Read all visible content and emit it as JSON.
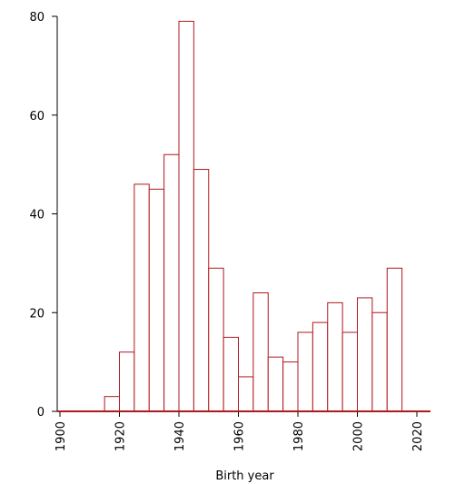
{
  "chart_data": {
    "type": "bar",
    "xlabel": "Birth year",
    "ylabel": "",
    "title": "",
    "xlim": [
      1900,
      2025
    ],
    "ylim": [
      0,
      80
    ],
    "xticks": [
      1900,
      1920,
      1940,
      1960,
      1980,
      2000,
      2020
    ],
    "yticks": [
      0,
      20,
      40,
      60,
      80
    ],
    "bin_width": 5,
    "bins": [
      {
        "start": 1915,
        "end": 1920,
        "count": 3
      },
      {
        "start": 1920,
        "end": 1925,
        "count": 12
      },
      {
        "start": 1925,
        "end": 1930,
        "count": 46
      },
      {
        "start": 1930,
        "end": 1935,
        "count": 45
      },
      {
        "start": 1935,
        "end": 1940,
        "count": 52
      },
      {
        "start": 1940,
        "end": 1945,
        "count": 79
      },
      {
        "start": 1945,
        "end": 1950,
        "count": 49
      },
      {
        "start": 1950,
        "end": 1955,
        "count": 29
      },
      {
        "start": 1955,
        "end": 1960,
        "count": 15
      },
      {
        "start": 1960,
        "end": 1965,
        "count": 7
      },
      {
        "start": 1965,
        "end": 1970,
        "count": 24
      },
      {
        "start": 1970,
        "end": 1975,
        "count": 11
      },
      {
        "start": 1975,
        "end": 1980,
        "count": 10
      },
      {
        "start": 1980,
        "end": 1985,
        "count": 16
      },
      {
        "start": 1985,
        "end": 1990,
        "count": 18
      },
      {
        "start": 1990,
        "end": 1995,
        "count": 22
      },
      {
        "start": 1995,
        "end": 2000,
        "count": 16
      },
      {
        "start": 2000,
        "end": 2005,
        "count": 23
      },
      {
        "start": 2005,
        "end": 2010,
        "count": 20
      },
      {
        "start": 2010,
        "end": 2015,
        "count": 29
      }
    ],
    "colors": {
      "bar_stroke": "#b0171f",
      "bar_fill": "#ffffff",
      "axis": "#000000"
    },
    "grid": false,
    "legend": "none"
  }
}
